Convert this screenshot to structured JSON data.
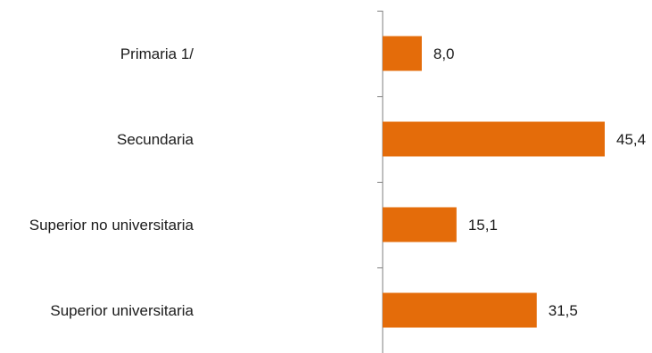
{
  "chart_data": {
    "type": "bar",
    "orientation": "horizontal",
    "categories": [
      "Primaria  1/",
      "Secundaria",
      "Superior no universitaria",
      "Superior universitaria"
    ],
    "values": [
      8.0,
      45.4,
      15.1,
      31.5
    ],
    "value_labels": [
      "8,0",
      "45,4",
      "15,1",
      "31,5"
    ],
    "xlim": [
      0,
      45.4
    ],
    "bar_color": "#E46C0A",
    "axis_color": "#7f7f7f",
    "grid": false,
    "legend": "none"
  }
}
